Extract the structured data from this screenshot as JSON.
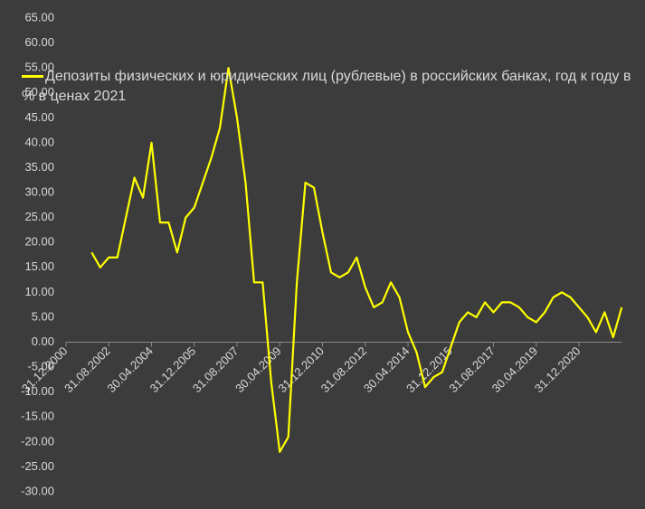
{
  "chart_data": {
    "type": "line",
    "categories": [
      "31.12.2000",
      null,
      null,
      null,
      null,
      "31.08.2002",
      null,
      null,
      null,
      null,
      "30.04.2004",
      null,
      null,
      null,
      null,
      "31.12.2005",
      null,
      null,
      null,
      null,
      "31.08.2007",
      null,
      null,
      null,
      null,
      "30.04.2009",
      null,
      null,
      null,
      null,
      "31.12.2010",
      null,
      null,
      null,
      null,
      "31.08.2012",
      null,
      null,
      null,
      null,
      "30.04.2014",
      null,
      null,
      null,
      null,
      "31.12.2015",
      null,
      null,
      null,
      null,
      "31.08.2017",
      null,
      null,
      null,
      null,
      "30.04.2019",
      null,
      null,
      null,
      null,
      "31.12.2020",
      null,
      null,
      null,
      null,
      null
    ],
    "series": [
      {
        "name": "Депозиты физических и юридических лиц (рублевые) в российских банках, год к году в % в ценах 2021",
        "color": "#ffff00",
        "values": [
          null,
          null,
          null,
          18,
          15,
          17,
          17,
          25,
          33,
          29,
          40,
          24,
          24,
          18,
          25,
          27,
          32,
          37,
          43,
          55,
          45,
          32,
          12,
          12,
          -8,
          -22,
          -19,
          12,
          32,
          31,
          22,
          14,
          13,
          14,
          17,
          11,
          7,
          8,
          12,
          9,
          2,
          -2,
          -9,
          -7,
          -6,
          -1,
          4,
          6,
          5,
          8,
          6,
          8,
          8,
          7,
          5,
          4,
          6,
          9,
          10,
          9,
          7,
          5,
          2,
          6,
          1,
          7
        ]
      }
    ],
    "ylim": [
      -30,
      65
    ],
    "yticks": [
      {
        "value": -30,
        "label": "-30.00"
      },
      {
        "value": -25,
        "label": "-25.00"
      },
      {
        "value": -20,
        "label": "-20.00"
      },
      {
        "value": -15,
        "label": "-15.00"
      },
      {
        "value": -10,
        "label": "-10.00"
      },
      {
        "value": -5,
        "label": "-5.00"
      },
      {
        "value": 0,
        "label": "0.00"
      },
      {
        "value": 5,
        "label": "5.00"
      },
      {
        "value": 10,
        "label": "10.00"
      },
      {
        "value": 15,
        "label": "15.00"
      },
      {
        "value": 20,
        "label": "20.00"
      },
      {
        "value": 25,
        "label": "25.00"
      },
      {
        "value": 30,
        "label": "30.00"
      },
      {
        "value": 35,
        "label": "35.00"
      },
      {
        "value": 40,
        "label": "40.00"
      },
      {
        "value": 45,
        "label": "45.00"
      },
      {
        "value": 50,
        "label": "50.00"
      },
      {
        "value": 55,
        "label": "55.00"
      },
      {
        "value": 60,
        "label": "60.00"
      },
      {
        "value": 65,
        "label": "65.00"
      }
    ],
    "grid": false,
    "legend": "top"
  }
}
